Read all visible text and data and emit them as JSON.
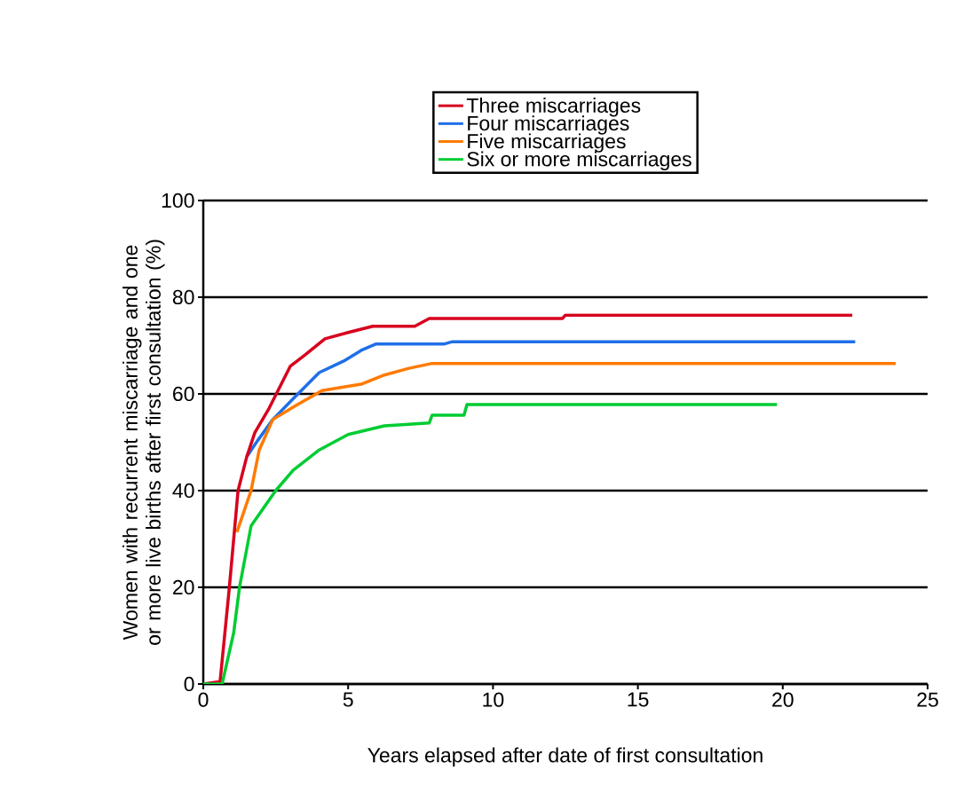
{
  "chart_data": {
    "type": "line",
    "xlabel": "Years elapsed after date of first consultation",
    "ylabel": "Women with recurrent miscarriage and one or more live births after first consultation (%)",
    "xlim": [
      0,
      25
    ],
    "ylim": [
      0,
      100
    ],
    "xticks": [
      0,
      5,
      10,
      15,
      20,
      25
    ],
    "yticks": [
      0,
      20,
      40,
      60,
      80,
      100
    ],
    "grid": "y",
    "legend": "top",
    "series": [
      {
        "name": "Three miscarriages",
        "color": "#d7001e",
        "x": [
          0,
          0.58,
          0.9,
          1.2,
          1.5,
          1.78,
          2.27,
          3.0,
          3.5,
          4.2,
          5.0,
          5.85,
          7.3,
          7.8,
          12.4,
          12.5,
          22.4
        ],
        "values": [
          0,
          0.5,
          20,
          40,
          47,
          52,
          57,
          65.7,
          68,
          71.4,
          72.7,
          74,
          74,
          75.6,
          75.6,
          76.3,
          76.3
        ]
      },
      {
        "name": "Four miscarriages",
        "color": "#1f6fe8",
        "x": [
          1.5,
          1.87,
          2.4,
          3.1,
          4.0,
          4.85,
          5.45,
          5.95,
          8.3,
          8.6,
          22.5
        ],
        "values": [
          47,
          50.3,
          54.7,
          59,
          64.4,
          66.8,
          69,
          70.3,
          70.3,
          70.8,
          70.8
        ]
      },
      {
        "name": "Five miscarriages",
        "color": "#ff7a00",
        "x": [
          1.16,
          1.65,
          1.93,
          2.4,
          3.2,
          4.1,
          5.45,
          6.25,
          7.1,
          7.9,
          23.9
        ],
        "values": [
          31.4,
          40,
          48.4,
          54.7,
          57.6,
          60.7,
          62,
          63.9,
          65.3,
          66.3,
          66.3
        ]
      },
      {
        "name": "Six or more miscarriages",
        "color": "#00cc33",
        "x": [
          0,
          0.65,
          1.05,
          1.25,
          1.65,
          2.5,
          3.1,
          4.0,
          5.0,
          6.25,
          7.8,
          7.9,
          9.0,
          9.1,
          19.8
        ],
        "values": [
          0,
          0,
          10.6,
          20,
          32.7,
          40,
          44.2,
          48.4,
          51.6,
          53.4,
          54,
          55.6,
          55.6,
          57.8,
          57.8
        ]
      }
    ]
  }
}
